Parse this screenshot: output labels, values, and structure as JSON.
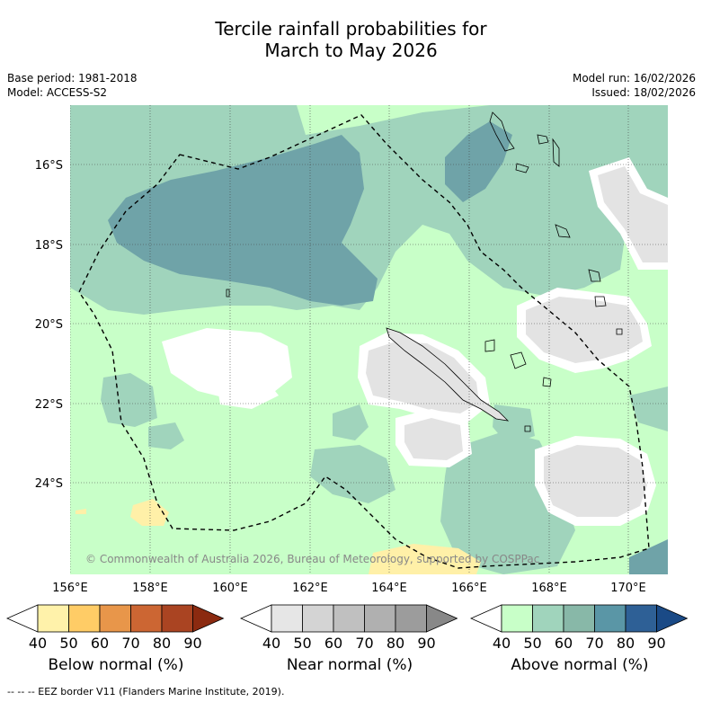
{
  "title_line1": "Tercile rainfall probabilities for",
  "title_line2": "March to May 2026",
  "base_period": "Base period: 1981-2018",
  "model": "Model: ACCESS-S2",
  "model_run": "Model run: 16/02/2026",
  "issued": "Issued: 18/02/2026",
  "copyright": "© Commonwealth of Australia 2026, Bureau of Meteorology, supported by COSPPac",
  "lat_labels": [
    "16°S",
    "18°S",
    "20°S",
    "22°S",
    "24°S"
  ],
  "lon_labels": [
    "156°E",
    "158°E",
    "160°E",
    "162°E",
    "164°E",
    "166°E",
    "168°E",
    "170°E"
  ],
  "colorbars": [
    {
      "name": "below",
      "label": "Below normal (%)",
      "ticks": [
        "40",
        "50",
        "60",
        "70",
        "80",
        "90"
      ],
      "colors": [
        "#ffffff",
        "#fff2aa",
        "#ffcc66",
        "#e8964a",
        "#cc6633",
        "#aa4422",
        "#8b2a10"
      ]
    },
    {
      "name": "near",
      "label": "Near normal (%)",
      "ticks": [
        "40",
        "50",
        "60",
        "70",
        "80",
        "90"
      ],
      "colors": [
        "#ffffff",
        "#e6e6e6",
        "#d4d4d4",
        "#c0c0c0",
        "#b0b0b0",
        "#9c9c9c",
        "#888888"
      ]
    },
    {
      "name": "above",
      "label": "Above normal (%)",
      "ticks": [
        "40",
        "50",
        "60",
        "70",
        "80",
        "90"
      ],
      "colors": [
        "#ffffff",
        "#c8ffc8",
        "#a0d4bc",
        "#88b8a8",
        "#5a96a6",
        "#2e6096",
        "#1a4a86"
      ]
    }
  ],
  "footnote": "-- -- -- EEZ border V11 (Flanders Marine Institute, 2019).",
  "colors": {
    "above_40_50": "#c8ffc8",
    "above_50_60": "#a0d4bc",
    "above_60_70": "#6fa3a8",
    "near_40_50": "#e3e3e3",
    "below_40_50": "#fff0a8"
  }
}
